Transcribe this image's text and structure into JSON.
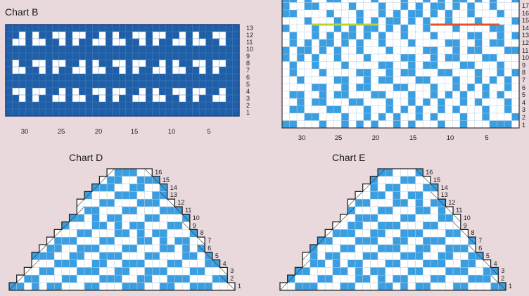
{
  "colors": {
    "background": "#ead9dc",
    "chart_b_fill": "#1f5fa8",
    "chart_blue": "#3a9ee0",
    "grid_light": "#b9cfe4",
    "grid_dark": "#1a3f78",
    "marker_green": "#b5d332",
    "marker_red": "#e0522b"
  },
  "chart_b": {
    "title": "Chart B",
    "row_numbers": [
      "13",
      "12",
      "11",
      "10",
      "9",
      "8",
      "7",
      "6",
      "5",
      "4",
      "3",
      "2",
      "1"
    ],
    "column_numbers": [
      "30",
      "25",
      "20",
      "15",
      "10",
      "5"
    ]
  },
  "chart_c": {
    "row_numbers": [
      "17",
      "16",
      "15",
      "14",
      "13",
      "12",
      "11",
      "10",
      "9",
      "8",
      "7",
      "6",
      "5",
      "4",
      "3",
      "2",
      "1"
    ],
    "column_numbers": [
      "30",
      "25",
      "20",
      "15",
      "10",
      "5"
    ]
  },
  "chart_d": {
    "title": "Chart D",
    "row_numbers": [
      "16",
      "15",
      "14",
      "13",
      "12",
      "11",
      "10",
      "9",
      "8",
      "7",
      "6",
      "5",
      "4",
      "3",
      "2",
      "1"
    ]
  },
  "chart_e": {
    "title": "Chart E",
    "row_numbers": [
      "16",
      "15",
      "14",
      "13",
      "12",
      "11",
      "10",
      "9",
      "8",
      "7",
      "6",
      "5",
      "4",
      "3",
      "2",
      "1"
    ]
  }
}
